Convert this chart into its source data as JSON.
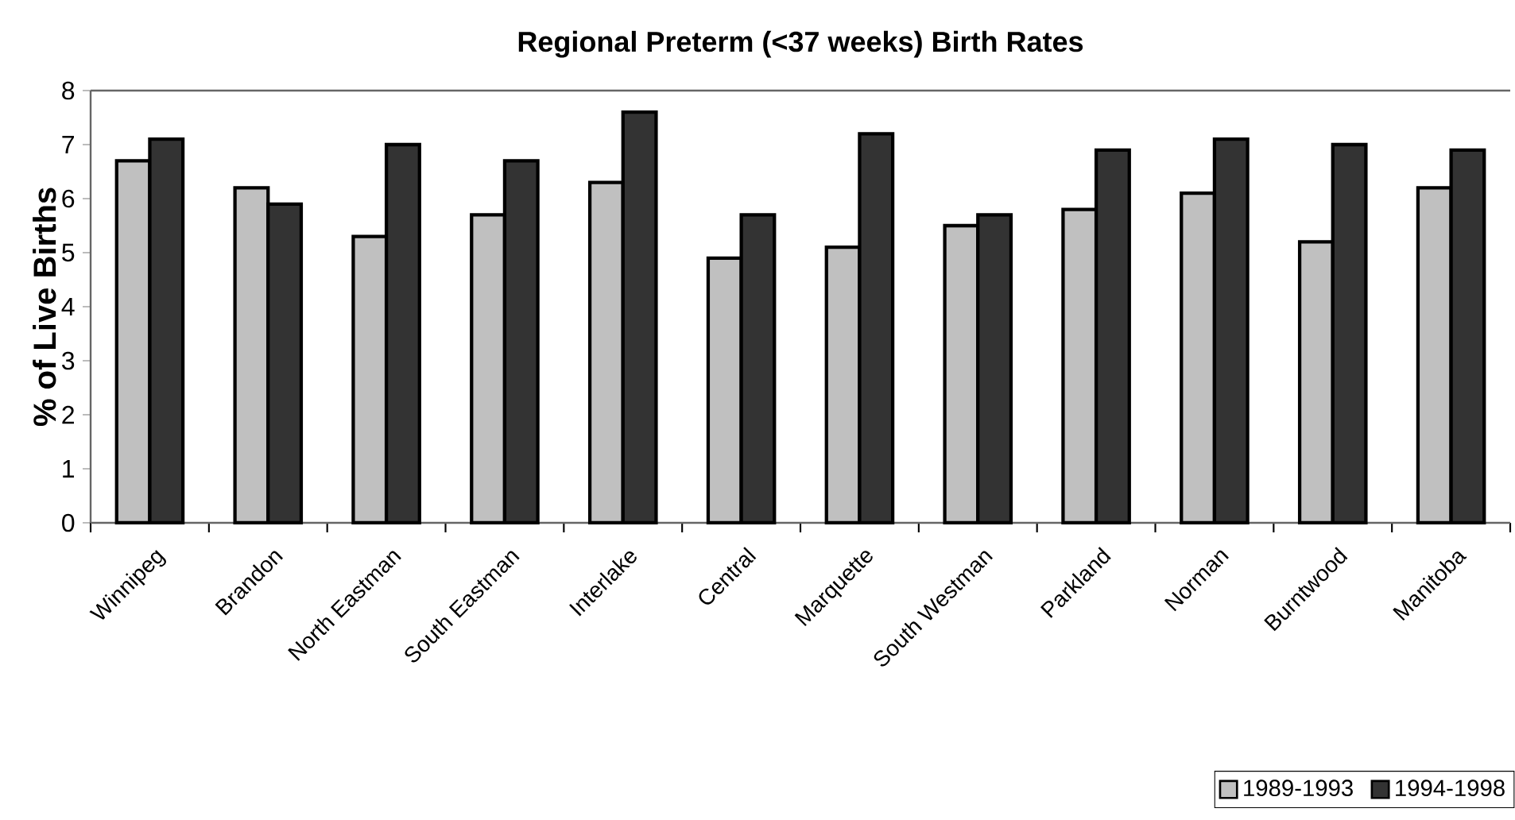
{
  "chart_data": {
    "type": "bar",
    "title": "Regional Preterm (<37 weeks) Birth Rates",
    "ylabel": "% of Live Births",
    "categories": [
      "Winnipeg",
      "Brandon",
      "North Eastman",
      "South Eastman",
      "Interlake",
      "Central",
      "Marquette",
      "South Westman",
      "Parkland",
      "Norman",
      "Burntwood",
      "Manitoba"
    ],
    "series": [
      {
        "name": "1989-1993",
        "color": "#c0c0c0",
        "values": [
          6.7,
          6.2,
          5.3,
          5.7,
          6.3,
          4.9,
          5.1,
          5.5,
          5.8,
          6.1,
          5.2,
          6.2
        ]
      },
      {
        "name": "1994-1998",
        "color": "#333333",
        "values": [
          7.1,
          5.9,
          7.0,
          6.7,
          7.6,
          5.7,
          7.2,
          5.7,
          6.9,
          7.1,
          7.0,
          6.9
        ]
      }
    ],
    "ylim": [
      0,
      8
    ],
    "yticks": [
      0,
      1,
      2,
      3,
      4,
      5,
      6,
      7,
      8
    ],
    "grid": false,
    "legend": "bottom right"
  }
}
